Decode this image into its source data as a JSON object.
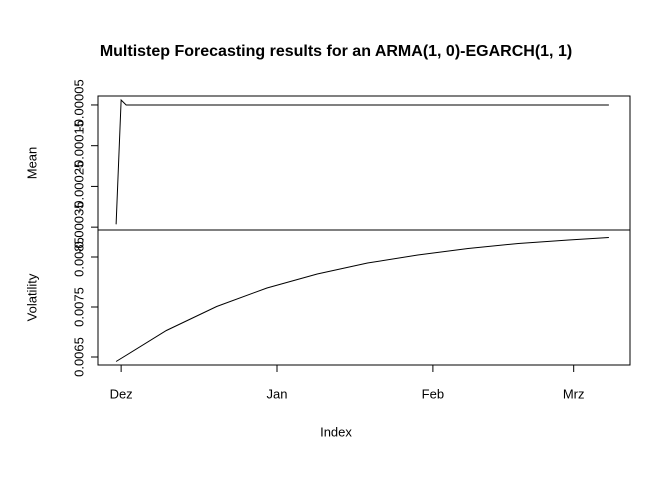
{
  "chart_data": [
    {
      "type": "line",
      "title": "Multistep Forecasting results for an ARMA(1, 0)-EGARCH(1, 1)",
      "ylabel": "Mean",
      "color": "#000000",
      "x": [
        -1,
        0,
        1,
        97
      ],
      "values": [
        -0.000343,
        -3.8e-05,
        -5e-05,
        -5e-05
      ],
      "xlim": [
        -4.6,
        101.2
      ],
      "ylim": [
        -0.000357,
        -2.8e-05
      ],
      "yticks": [
        -0.00035,
        -0.00025,
        -0.00015,
        -5e-05
      ]
    },
    {
      "type": "line",
      "ylabel": "Volatility",
      "xlabel": "Index",
      "color": "#000000",
      "x": [
        -1,
        9,
        19,
        29,
        39,
        49,
        59,
        69,
        79,
        89,
        97
      ],
      "values": [
        0.00641,
        0.00703,
        0.00751,
        0.00788,
        0.00816,
        0.00838,
        0.00854,
        0.00867,
        0.00877,
        0.00884,
        0.00889
      ],
      "xlim": [
        -4.6,
        101.2
      ],
      "ylim": [
        0.00634,
        0.00904
      ],
      "xticks": [
        {
          "value": 0,
          "label": "Dez"
        },
        {
          "value": 31,
          "label": "Jan"
        },
        {
          "value": 62,
          "label": "Feb"
        },
        {
          "value": 90,
          "label": "Mrz"
        }
      ],
      "yticks": [
        0.0065,
        0.0075,
        0.0085
      ]
    }
  ]
}
